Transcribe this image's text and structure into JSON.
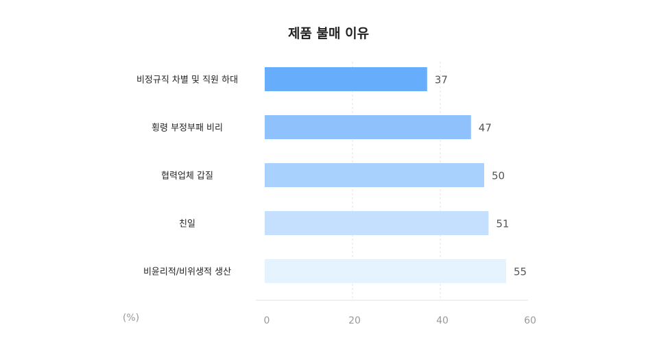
{
  "chart_data": {
    "type": "bar",
    "orientation": "horizontal",
    "title": "제품 불매 이유",
    "unit": "(%)",
    "categories": [
      "비정규직 차별 및 직원 하대",
      "횡령 부정부패 비리",
      "협력업체 갑질",
      "친일",
      "비윤리적/비위생적 생산"
    ],
    "values": [
      37,
      47,
      50,
      51,
      55
    ],
    "value_labels": [
      "37",
      "47",
      "50",
      "51",
      "55"
    ],
    "xlim": [
      0,
      60
    ],
    "ticks": [
      "0",
      "20",
      "40",
      "60"
    ],
    "tick_values": [
      0,
      20,
      40,
      60
    ],
    "grid": "vertical dashed",
    "colors": [
      "#66aefc",
      "#8fc2fd",
      "#a8d1fd",
      "#c5e0fe",
      "#e4f3fe"
    ]
  }
}
